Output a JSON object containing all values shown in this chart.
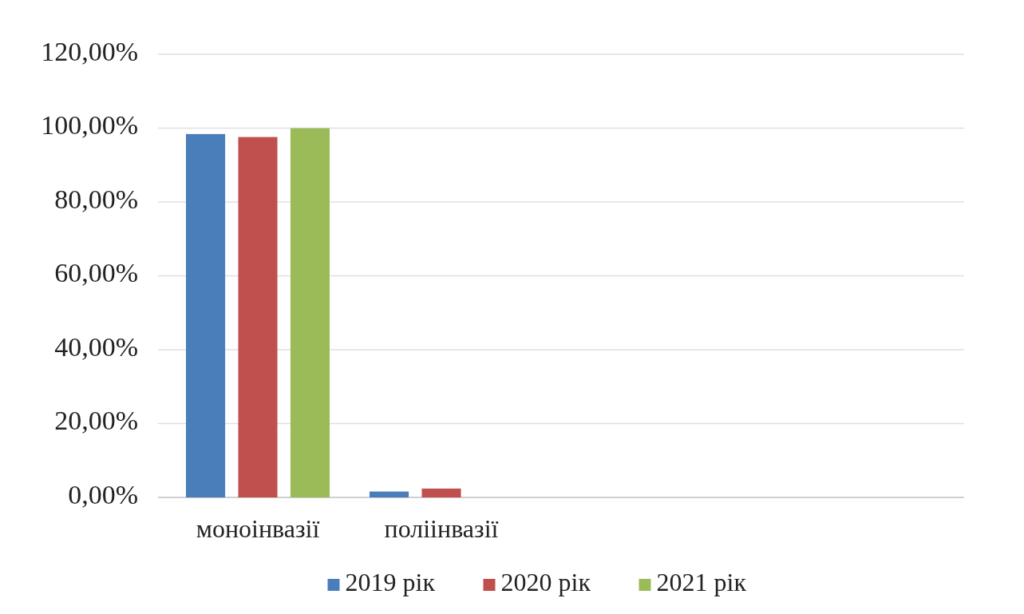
{
  "chart_data": {
    "type": "bar",
    "categories": [
      "моноінвазії",
      "поліінвазії"
    ],
    "series": [
      {
        "name": "2019 рік",
        "color": "#4a7ebb",
        "values": [
          98.4,
          1.6
        ]
      },
      {
        "name": "2020 рік",
        "color": "#c0504d",
        "values": [
          97.6,
          2.4
        ]
      },
      {
        "name": "2021 рік",
        "color": "#9bbb59",
        "values": [
          100,
          0
        ]
      }
    ],
    "ylim": [
      0,
      120
    ],
    "yticks": [
      {
        "value": 0,
        "label": "0,00%"
      },
      {
        "value": 20,
        "label": "20,00%"
      },
      {
        "value": 40,
        "label": "40,00%"
      },
      {
        "value": 60,
        "label": "60,00%"
      },
      {
        "value": 80,
        "label": "80,00%"
      },
      {
        "value": 100,
        "label": "100,00%"
      },
      {
        "value": 120,
        "label": "120,00%"
      }
    ],
    "grid": "y",
    "legend": "bottom"
  }
}
